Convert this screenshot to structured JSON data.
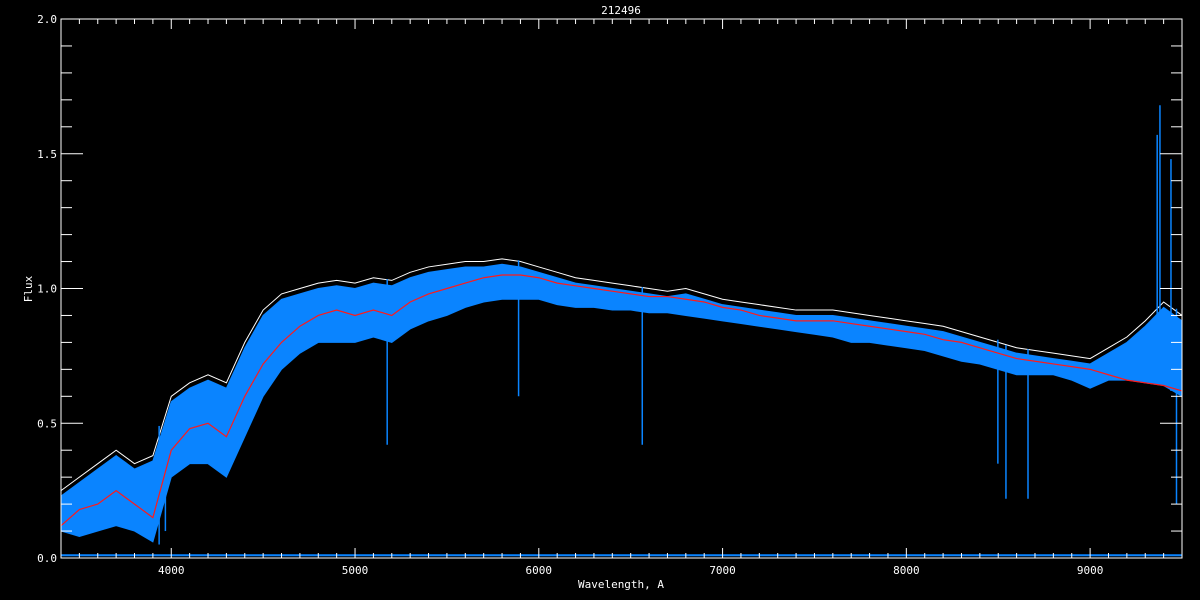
{
  "chart_data": {
    "type": "line",
    "title": "212496",
    "xlabel": "Wavelength, A",
    "ylabel": "Flux",
    "xlim": [
      3400,
      9500
    ],
    "ylim": [
      0.0,
      2.0
    ],
    "xticks": [
      4000,
      5000,
      6000,
      7000,
      8000,
      9000
    ],
    "xtick_labels": [
      "4000",
      "5000",
      "6000",
      "7000",
      "8000",
      "9000"
    ],
    "yticks": [
      0.0,
      0.5,
      1.0,
      1.5,
      2.0
    ],
    "ytick_labels": [
      "0.0",
      "0.5",
      "1.0",
      "1.5",
      "2.0"
    ],
    "grid": false,
    "colors": {
      "background": "#000000",
      "axes": "#ffffff",
      "observed": "#0a84ff",
      "model": "#ff1a1a",
      "observed_upper": "#ffffff",
      "error": "#0a84ff"
    },
    "x": [
      3400,
      3500,
      3600,
      3700,
      3800,
      3900,
      4000,
      4100,
      4200,
      4300,
      4400,
      4500,
      4600,
      4700,
      4800,
      4900,
      5000,
      5100,
      5200,
      5300,
      5400,
      5500,
      5600,
      5700,
      5800,
      5900,
      6000,
      6100,
      6200,
      6300,
      6400,
      6500,
      6600,
      6700,
      6800,
      6900,
      7000,
      7100,
      7200,
      7300,
      7400,
      7500,
      7600,
      7700,
      7800,
      7900,
      8000,
      8100,
      8200,
      8300,
      8400,
      8500,
      8600,
      8700,
      8800,
      8900,
      9000,
      9100,
      9200,
      9300,
      9400,
      9500
    ],
    "series": [
      {
        "role": "model",
        "values": [
          0.12,
          0.18,
          0.2,
          0.25,
          0.2,
          0.15,
          0.4,
          0.48,
          0.5,
          0.45,
          0.6,
          0.72,
          0.8,
          0.86,
          0.9,
          0.92,
          0.9,
          0.92,
          0.9,
          0.95,
          0.98,
          1.0,
          1.02,
          1.04,
          1.05,
          1.05,
          1.04,
          1.02,
          1.01,
          1.0,
          0.99,
          0.98,
          0.97,
          0.97,
          0.96,
          0.95,
          0.93,
          0.92,
          0.9,
          0.89,
          0.88,
          0.88,
          0.88,
          0.87,
          0.86,
          0.85,
          0.84,
          0.83,
          0.81,
          0.8,
          0.78,
          0.76,
          0.74,
          0.73,
          0.72,
          0.71,
          0.7,
          0.68,
          0.66,
          0.65,
          0.64,
          0.62
        ]
      },
      {
        "role": "observed_upper",
        "values": [
          0.25,
          0.3,
          0.35,
          0.4,
          0.35,
          0.38,
          0.6,
          0.65,
          0.68,
          0.65,
          0.8,
          0.92,
          0.98,
          1.0,
          1.02,
          1.03,
          1.02,
          1.04,
          1.03,
          1.06,
          1.08,
          1.09,
          1.1,
          1.1,
          1.11,
          1.1,
          1.08,
          1.06,
          1.04,
          1.03,
          1.02,
          1.01,
          1.0,
          0.99,
          1.0,
          0.98,
          0.96,
          0.95,
          0.94,
          0.93,
          0.92,
          0.92,
          0.92,
          0.91,
          0.9,
          0.89,
          0.88,
          0.87,
          0.86,
          0.84,
          0.82,
          0.8,
          0.78,
          0.77,
          0.76,
          0.75,
          0.74,
          0.78,
          0.82,
          0.88,
          0.95,
          0.9
        ]
      },
      {
        "role": "observed_lower",
        "values": [
          0.1,
          0.08,
          0.1,
          0.12,
          0.1,
          0.06,
          0.3,
          0.35,
          0.35,
          0.3,
          0.45,
          0.6,
          0.7,
          0.76,
          0.8,
          0.8,
          0.8,
          0.82,
          0.8,
          0.85,
          0.88,
          0.9,
          0.93,
          0.95,
          0.96,
          0.96,
          0.96,
          0.94,
          0.93,
          0.93,
          0.92,
          0.92,
          0.91,
          0.91,
          0.9,
          0.89,
          0.88,
          0.87,
          0.86,
          0.85,
          0.84,
          0.83,
          0.82,
          0.8,
          0.8,
          0.79,
          0.78,
          0.77,
          0.75,
          0.73,
          0.72,
          0.7,
          0.68,
          0.68,
          0.68,
          0.66,
          0.63,
          0.66,
          0.66,
          0.65,
          0.64,
          0.6
        ]
      }
    ],
    "observed_lines": [
      [
        3934,
        0.05
      ],
      [
        3968,
        0.1
      ],
      [
        5175,
        0.42
      ],
      [
        5890,
        0.6
      ],
      [
        6563,
        0.42
      ],
      [
        8498,
        0.35
      ],
      [
        8542,
        0.22
      ],
      [
        8662,
        0.22
      ],
      [
        9365,
        1.57
      ],
      [
        9380,
        1.68
      ],
      [
        9440,
        1.48
      ],
      [
        9470,
        0.2
      ]
    ],
    "error_level": 0.01
  }
}
